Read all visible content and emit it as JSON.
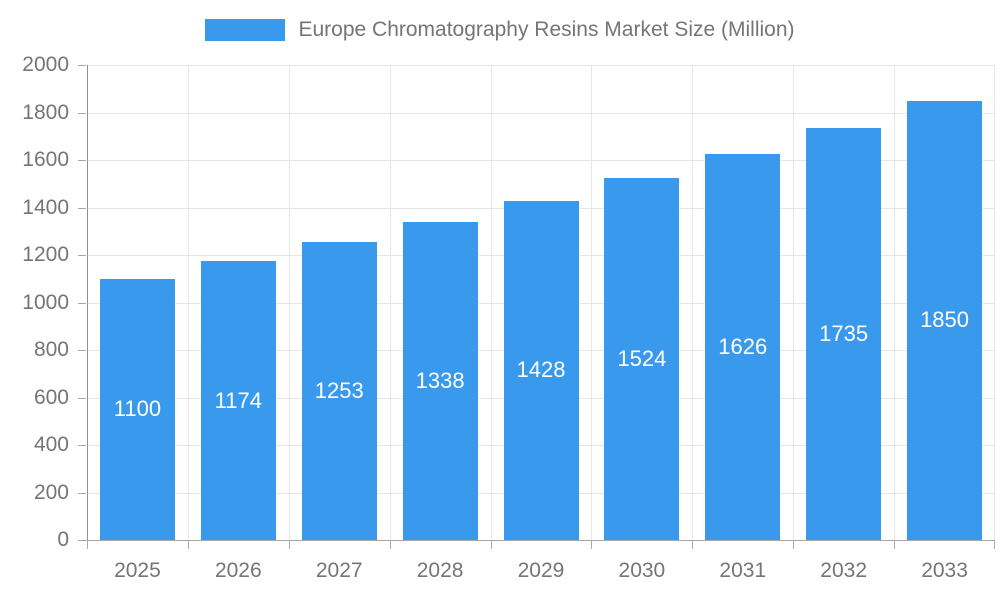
{
  "chart_data": {
    "type": "bar",
    "title": "Europe Chromatography Resins Market Size (Million)",
    "categories": [
      "2025",
      "2026",
      "2027",
      "2028",
      "2029",
      "2030",
      "2031",
      "2032",
      "2033"
    ],
    "values": [
      1100,
      1174,
      1253,
      1338,
      1428,
      1524,
      1626,
      1735,
      1850
    ],
    "xlabel": "",
    "ylabel": "",
    "ylim": [
      0,
      2000
    ],
    "ytick_step": 200,
    "grid": true,
    "legend_position": "top-center",
    "bar_color": "#3999ed",
    "value_label_color": "#ffffff",
    "axis_text_color": "#757575",
    "gridline_color": "#e6e6e6",
    "axis_line_color": "#a6a6a6"
  }
}
